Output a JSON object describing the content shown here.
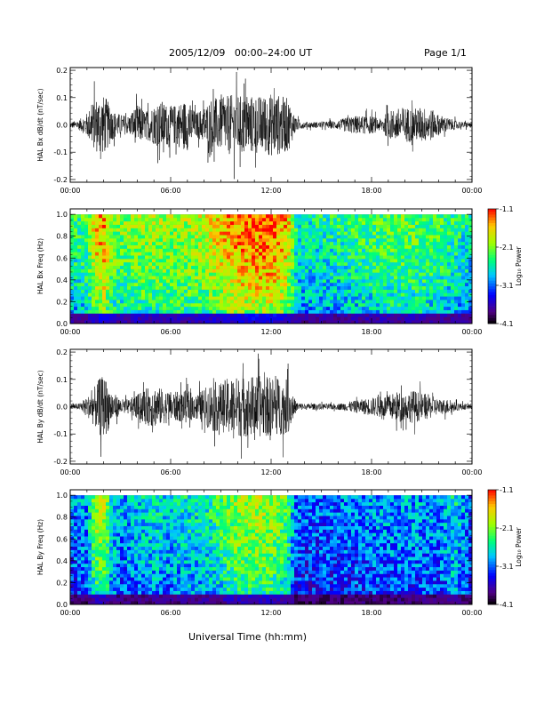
{
  "header": {
    "date_range": "2005/12/09   00:00–24:00 UT",
    "page": "Page 1/1"
  },
  "xlabel": "Universal Time (hh:mm)",
  "chart_data": [
    {
      "type": "line",
      "ylabel": "HAL Bx dB/dt (nT/sec)",
      "x_ticks": [
        "00:00",
        "06:00",
        "12:00",
        "18:00",
        "00:00"
      ],
      "y_ticks": [
        "-0.2",
        "-0.1",
        "0.0",
        "0.1",
        "0.2"
      ],
      "ylim": [
        -0.21,
        0.21
      ],
      "xlim_hours": [
        0,
        24
      ],
      "envelope": {
        "hours": [
          0,
          0.5,
          1,
          1.5,
          1.8,
          2.1,
          2.5,
          3,
          3.5,
          4,
          4.5,
          5,
          5.5,
          6,
          6.5,
          7,
          7.5,
          8,
          8.5,
          9,
          9.5,
          10,
          10.5,
          11,
          11.5,
          12,
          12.5,
          13,
          13.5,
          14,
          15,
          16,
          16.5,
          17,
          18,
          18.5,
          19,
          19.5,
          20,
          20.5,
          21,
          21.5,
          22,
          22.5,
          23,
          23.5,
          24
        ],
        "amplitude": [
          0.02,
          0.03,
          0.08,
          0.18,
          0.2,
          0.19,
          0.1,
          0.07,
          0.06,
          0.14,
          0.09,
          0.13,
          0.16,
          0.12,
          0.15,
          0.17,
          0.08,
          0.12,
          0.19,
          0.17,
          0.2,
          0.2,
          0.19,
          0.2,
          0.19,
          0.21,
          0.2,
          0.18,
          0.04,
          0.02,
          0.02,
          0.03,
          0.05,
          0.06,
          0.06,
          0.04,
          0.09,
          0.11,
          0.12,
          0.11,
          0.12,
          0.11,
          0.07,
          0.05,
          0.03,
          0.02,
          0.02
        ]
      }
    },
    {
      "type": "heatmap",
      "ylabel": "HAL Bx Freq (Hz)",
      "x_ticks": [
        "00:00",
        "06:00",
        "12:00",
        "18:00",
        "00:00"
      ],
      "y_ticks": [
        "0.0",
        "0.2",
        "0.4",
        "0.6",
        "0.8",
        "1.0"
      ],
      "ylim": [
        0,
        1.05
      ],
      "colorbar": {
        "label": "Log₁₀ Power",
        "ticks": [
          "-1.1",
          "-2.1",
          "-3.1",
          "-4.1"
        ],
        "range": [
          -4.1,
          -1.1
        ]
      },
      "activity": {
        "hours": [
          0,
          1,
          1.5,
          2,
          2.5,
          3,
          4,
          5,
          6,
          7,
          8,
          9,
          10,
          11,
          12,
          13,
          13.5,
          14,
          16,
          18,
          20,
          22,
          23,
          24
        ],
        "level": [
          0.55,
          0.6,
          0.85,
          0.9,
          0.7,
          0.65,
          0.7,
          0.72,
          0.7,
          0.72,
          0.75,
          0.85,
          0.92,
          0.95,
          0.95,
          0.85,
          0.55,
          0.5,
          0.55,
          0.6,
          0.65,
          0.6,
          0.55,
          0.5
        ]
      }
    },
    {
      "type": "line",
      "ylabel": "HAL By dB/dt (nT/sec)",
      "x_ticks": [
        "00:00",
        "06:00",
        "12:00",
        "18:00",
        "00:00"
      ],
      "y_ticks": [
        "-0.2",
        "-0.1",
        "0.0",
        "0.1",
        "0.2"
      ],
      "ylim": [
        -0.21,
        0.21
      ],
      "xlim_hours": [
        0,
        24
      ],
      "envelope": {
        "hours": [
          0,
          0.5,
          1,
          1.5,
          1.8,
          2.1,
          2.5,
          3,
          3.5,
          4,
          4.5,
          5,
          5.5,
          6,
          6.5,
          7,
          7.5,
          8,
          8.5,
          9,
          9.5,
          10,
          10.5,
          11,
          11.5,
          12,
          12.5,
          13,
          13.5,
          14,
          15,
          16,
          16.5,
          17,
          18,
          18.5,
          19,
          19.5,
          20,
          20.5,
          21,
          21.5,
          22,
          22.5,
          23,
          23.5,
          24
        ],
        "amplitude": [
          0.02,
          0.02,
          0.06,
          0.14,
          0.2,
          0.2,
          0.1,
          0.05,
          0.05,
          0.08,
          0.12,
          0.14,
          0.12,
          0.1,
          0.1,
          0.11,
          0.08,
          0.12,
          0.17,
          0.16,
          0.2,
          0.2,
          0.2,
          0.21,
          0.2,
          0.2,
          0.19,
          0.18,
          0.03,
          0.02,
          0.02,
          0.02,
          0.03,
          0.04,
          0.06,
          0.07,
          0.08,
          0.1,
          0.09,
          0.11,
          0.09,
          0.08,
          0.05,
          0.05,
          0.03,
          0.02,
          0.02
        ]
      }
    },
    {
      "type": "heatmap",
      "ylabel": "HAL By Freq (Hz)",
      "x_ticks": [
        "00:00",
        "06:00",
        "12:00",
        "18:00",
        "00:00"
      ],
      "y_ticks": [
        "0.0",
        "0.2",
        "0.4",
        "0.6",
        "0.8",
        "1.0"
      ],
      "ylim": [
        0,
        1.05
      ],
      "colorbar": {
        "label": "Log₁₀ Power",
        "ticks": [
          "-1.1",
          "-2.1",
          "-3.1",
          "-4.1"
        ],
        "range": [
          -4.1,
          -1.1
        ]
      },
      "activity": {
        "hours": [
          0,
          1,
          1.5,
          2,
          2.5,
          3,
          4,
          5,
          6,
          7,
          8,
          9,
          10,
          11,
          12,
          13,
          13.5,
          14,
          16,
          18,
          20,
          22,
          23,
          24
        ],
        "level": [
          0.35,
          0.4,
          0.7,
          0.75,
          0.5,
          0.4,
          0.45,
          0.5,
          0.45,
          0.5,
          0.5,
          0.6,
          0.7,
          0.72,
          0.72,
          0.6,
          0.35,
          0.32,
          0.35,
          0.38,
          0.4,
          0.38,
          0.5,
          0.3
        ]
      }
    }
  ]
}
